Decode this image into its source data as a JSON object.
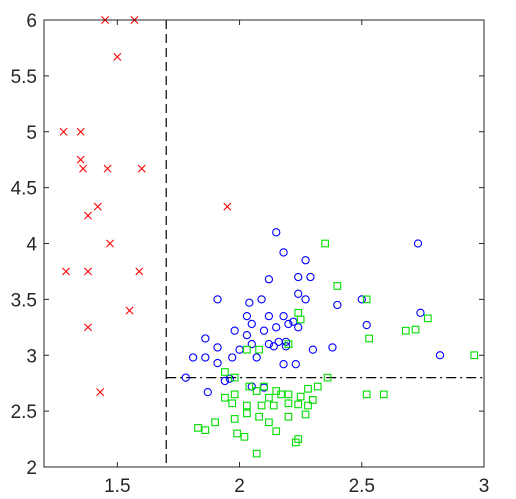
{
  "chart_data": {
    "type": "scatter",
    "title": "",
    "xlabel": "",
    "ylabel": "",
    "xlim": [
      1.2,
      3.0
    ],
    "ylim": [
      2.0,
      6.0
    ],
    "xticks": [
      1.5,
      2,
      2.5,
      3
    ],
    "xtick_labels": [
      "1.5",
      "2",
      "2.5",
      "3"
    ],
    "yticks": [
      2,
      2.5,
      3,
      3.5,
      4,
      4.5,
      5,
      5.5,
      6
    ],
    "ytick_labels": [
      "2",
      "2.5",
      "3",
      "3.5",
      "4",
      "4.5",
      "5",
      "5.5",
      "6"
    ],
    "grid": false,
    "legend": "none",
    "reference_lines": [
      {
        "orientation": "vertical",
        "x": 1.7,
        "y_range": [
          2.0,
          6.0
        ],
        "style": "dashed",
        "color": "#000000"
      },
      {
        "orientation": "horizontal",
        "y": 2.8,
        "x_range": [
          1.7,
          3.0
        ],
        "style": "dash-dot",
        "color": "#000000"
      }
    ],
    "series": [
      {
        "marker": "x",
        "color": "#ff0000",
        "points": [
          [
            1.45,
            6.0
          ],
          [
            1.57,
            6.0
          ],
          [
            1.5,
            5.67
          ],
          [
            1.28,
            5.0
          ],
          [
            1.35,
            5.0
          ],
          [
            1.35,
            4.75
          ],
          [
            1.36,
            4.67
          ],
          [
            1.46,
            4.67
          ],
          [
            1.6,
            4.67
          ],
          [
            1.42,
            4.33
          ],
          [
            1.95,
            4.33
          ],
          [
            1.38,
            4.25
          ],
          [
            1.47,
            4.0
          ],
          [
            1.29,
            3.75
          ],
          [
            1.38,
            3.75
          ],
          [
            1.59,
            3.75
          ],
          [
            1.55,
            3.4
          ],
          [
            1.38,
            3.25
          ],
          [
            1.43,
            2.67
          ]
        ]
      },
      {
        "marker": "o",
        "color": "#0000ff",
        "points": [
          [
            2.15,
            4.1
          ],
          [
            2.73,
            4.0
          ],
          [
            2.18,
            3.92
          ],
          [
            2.27,
            3.85
          ],
          [
            2.24,
            3.7
          ],
          [
            2.12,
            3.68
          ],
          [
            2.29,
            3.7
          ],
          [
            1.91,
            3.5
          ],
          [
            2.04,
            3.47
          ],
          [
            2.24,
            3.55
          ],
          [
            2.27,
            3.5
          ],
          [
            2.4,
            3.45
          ],
          [
            2.5,
            3.5
          ],
          [
            2.09,
            3.5
          ],
          [
            2.03,
            3.35
          ],
          [
            2.12,
            3.35
          ],
          [
            2.18,
            3.35
          ],
          [
            2.22,
            3.3
          ],
          [
            2.74,
            3.38
          ],
          [
            1.98,
            3.22
          ],
          [
            2.05,
            3.28
          ],
          [
            2.1,
            3.22
          ],
          [
            2.15,
            3.25
          ],
          [
            2.2,
            3.28
          ],
          [
            2.24,
            3.25
          ],
          [
            2.52,
            3.27
          ],
          [
            1.86,
            3.15
          ],
          [
            2.03,
            3.18
          ],
          [
            2.12,
            3.1
          ],
          [
            2.16,
            3.12
          ],
          [
            2.19,
            3.08
          ],
          [
            1.91,
            3.07
          ],
          [
            2.0,
            3.05
          ],
          [
            2.05,
            3.1
          ],
          [
            2.14,
            3.08
          ],
          [
            2.19,
            3.12
          ],
          [
            2.3,
            3.05
          ],
          [
            2.38,
            3.07
          ],
          [
            1.81,
            2.98
          ],
          [
            1.86,
            2.98
          ],
          [
            1.97,
            2.98
          ],
          [
            2.07,
            2.98
          ],
          [
            2.18,
            2.92
          ],
          [
            2.23,
            2.92
          ],
          [
            2.82,
            3.0
          ],
          [
            1.91,
            2.93
          ],
          [
            1.78,
            2.8
          ],
          [
            1.94,
            2.77
          ],
          [
            1.96,
            2.79
          ],
          [
            2.05,
            2.72
          ],
          [
            2.1,
            2.71
          ],
          [
            1.87,
            2.67
          ]
        ]
      },
      {
        "marker": "s",
        "color": "#00dd00",
        "points": [
          [
            2.35,
            4.0
          ],
          [
            2.4,
            3.62
          ],
          [
            2.52,
            3.5
          ],
          [
            2.24,
            3.38
          ],
          [
            2.25,
            3.32
          ],
          [
            2.77,
            3.33
          ],
          [
            2.68,
            3.22
          ],
          [
            2.72,
            3.23
          ],
          [
            2.53,
            3.15
          ],
          [
            2.03,
            3.05
          ],
          [
            2.08,
            3.05
          ],
          [
            2.2,
            3.1
          ],
          [
            2.96,
            3.0
          ],
          [
            1.94,
            2.85
          ],
          [
            1.98,
            2.8
          ],
          [
            2.36,
            2.8
          ],
          [
            2.15,
            2.68
          ],
          [
            2.17,
            2.65
          ],
          [
            2.28,
            2.7
          ],
          [
            2.32,
            2.72
          ],
          [
            2.52,
            2.65
          ],
          [
            2.59,
            2.65
          ],
          [
            1.94,
            2.62
          ],
          [
            1.98,
            2.65
          ],
          [
            2.04,
            2.72
          ],
          [
            2.07,
            2.68
          ],
          [
            2.1,
            2.72
          ],
          [
            2.12,
            2.62
          ],
          [
            2.2,
            2.65
          ],
          [
            2.25,
            2.63
          ],
          [
            2.3,
            2.6
          ],
          [
            1.97,
            2.57
          ],
          [
            2.03,
            2.55
          ],
          [
            2.09,
            2.55
          ],
          [
            2.14,
            2.55
          ],
          [
            2.2,
            2.57
          ],
          [
            2.24,
            2.56
          ],
          [
            2.28,
            2.55
          ],
          [
            1.98,
            2.43
          ],
          [
            2.03,
            2.48
          ],
          [
            2.08,
            2.45
          ],
          [
            2.12,
            2.4
          ],
          [
            2.2,
            2.45
          ],
          [
            2.27,
            2.47
          ],
          [
            1.83,
            2.35
          ],
          [
            1.86,
            2.33
          ],
          [
            1.9,
            2.4
          ],
          [
            1.99,
            2.3
          ],
          [
            2.02,
            2.27
          ],
          [
            2.15,
            2.32
          ],
          [
            2.24,
            2.25
          ],
          [
            2.23,
            2.22
          ],
          [
            2.07,
            2.12
          ]
        ]
      }
    ]
  }
}
